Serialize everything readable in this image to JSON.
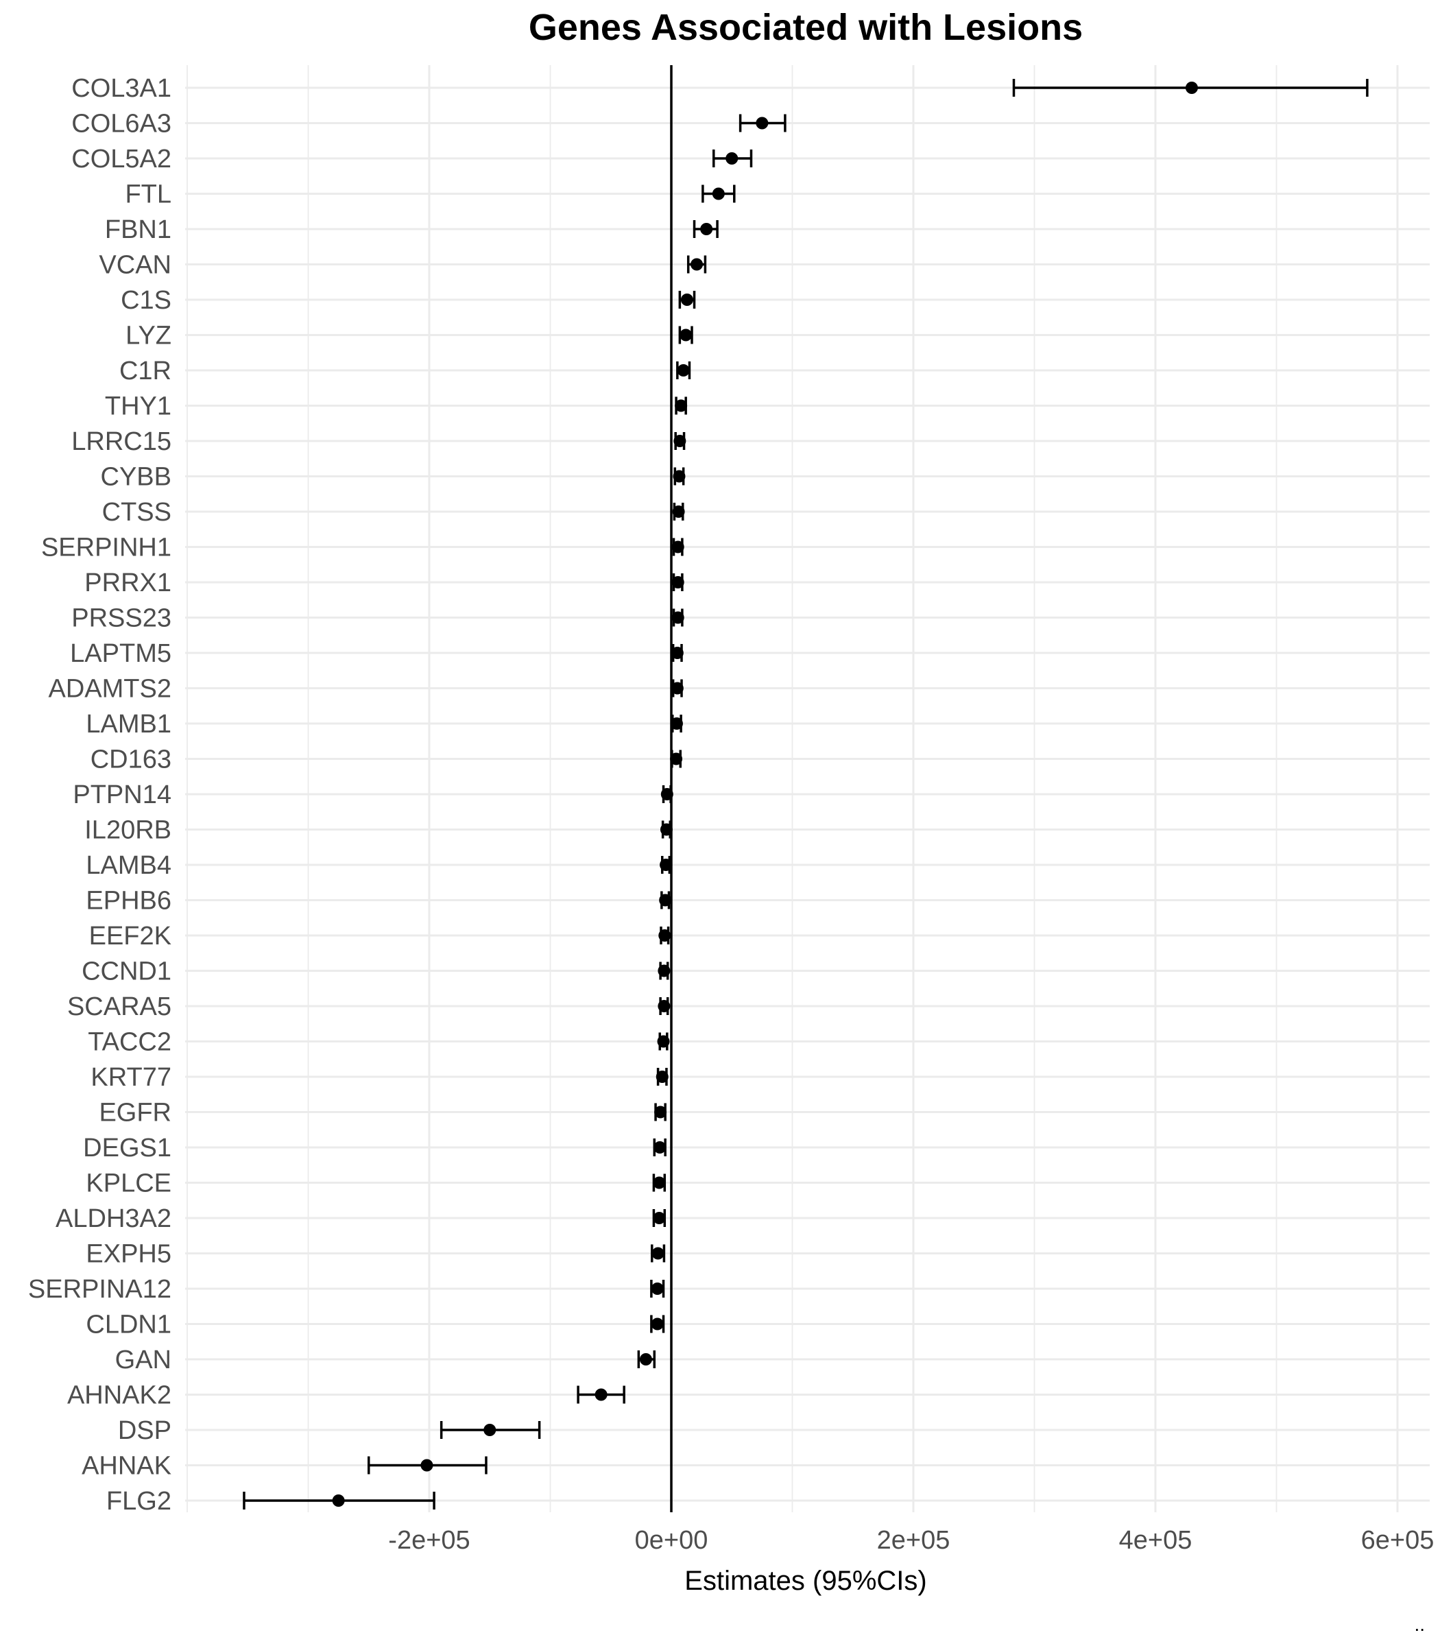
{
  "chart_data": {
    "type": "scatter",
    "subtype": "forest-plot",
    "title": "Genes Associated with Lesions",
    "subtitle": "",
    "xlabel": "Estimates (95%CIs)",
    "ylabel": "",
    "xlim": [
      -400000,
      620000
    ],
    "x_ticks": [
      -200000,
      0,
      200000,
      400000,
      600000
    ],
    "x_tick_labels": [
      "-2e+05",
      "0e+00",
      "2e+05",
      "4e+05",
      "6e+05"
    ],
    "reference_line": 0,
    "grid": true,
    "legend": "none",
    "caption": "..",
    "colors": {
      "point": "#000000",
      "grid": "#ebebeb",
      "tick_text": "#4d4d4d",
      "background": "#ffffff"
    },
    "genes": [
      "COL3A1",
      "COL6A3",
      "COL5A2",
      "FTL",
      "FBN1",
      "VCAN",
      "C1S",
      "LYZ",
      "C1R",
      "THY1",
      "LRRC15",
      "CYBB",
      "CTSS",
      "SERPINH1",
      "PRRX1",
      "PRSS23",
      "LAPTM5",
      "ADAMTS2",
      "LAMB1",
      "CD163",
      "PTPN14",
      "IL20RB",
      "LAMB4",
      "EPHB6",
      "EEF2K",
      "CCND1",
      "SCARA5",
      "TACC2",
      "KRT77",
      "EGFR",
      "DEGS1",
      "KPLCE",
      "ALDH3A2",
      "EXPH5",
      "SERPINA12",
      "CLDN1",
      "GAN",
      "AHNAK2",
      "DSP",
      "AHNAK",
      "FLG2"
    ],
    "estimates": [
      430000,
      75000,
      50000,
      39000,
      29000,
      21000,
      13000,
      12000,
      10000,
      8000,
      7000,
      6500,
      6000,
      5500,
      5500,
      5500,
      5000,
      5000,
      4500,
      4000,
      -3500,
      -4000,
      -4500,
      -5000,
      -5500,
      -6000,
      -6000,
      -6500,
      -7500,
      -9000,
      -9500,
      -10000,
      -10000,
      -11000,
      -11500,
      -11500,
      -21000,
      -58000,
      -150000,
      -202000,
      -275000
    ],
    "ci_low": [
      283000,
      57000,
      35000,
      26000,
      19000,
      14000,
      7000,
      7000,
      5000,
      4000,
      3500,
      3000,
      2500,
      2000,
      2000,
      2000,
      1500,
      1500,
      1000,
      500,
      -6500,
      -7000,
      -7500,
      -8000,
      -8500,
      -9000,
      -9000,
      -9500,
      -11000,
      -13000,
      -14000,
      -14500,
      -14500,
      -16000,
      -16500,
      -16500,
      -27000,
      -77000,
      -190000,
      -250000,
      -353000
    ],
    "ci_high": [
      575000,
      94000,
      66000,
      52000,
      38000,
      28000,
      19000,
      17000,
      15000,
      12000,
      10500,
      10000,
      9500,
      9000,
      9000,
      9000,
      8500,
      8500,
      8000,
      7500,
      -500,
      -1000,
      -1500,
      -2000,
      -2500,
      -3000,
      -3000,
      -3500,
      -4000,
      -5000,
      -5000,
      -5500,
      -5500,
      -6000,
      -6500,
      -6500,
      -14000,
      -39000,
      -109000,
      -153000,
      -196000
    ]
  }
}
